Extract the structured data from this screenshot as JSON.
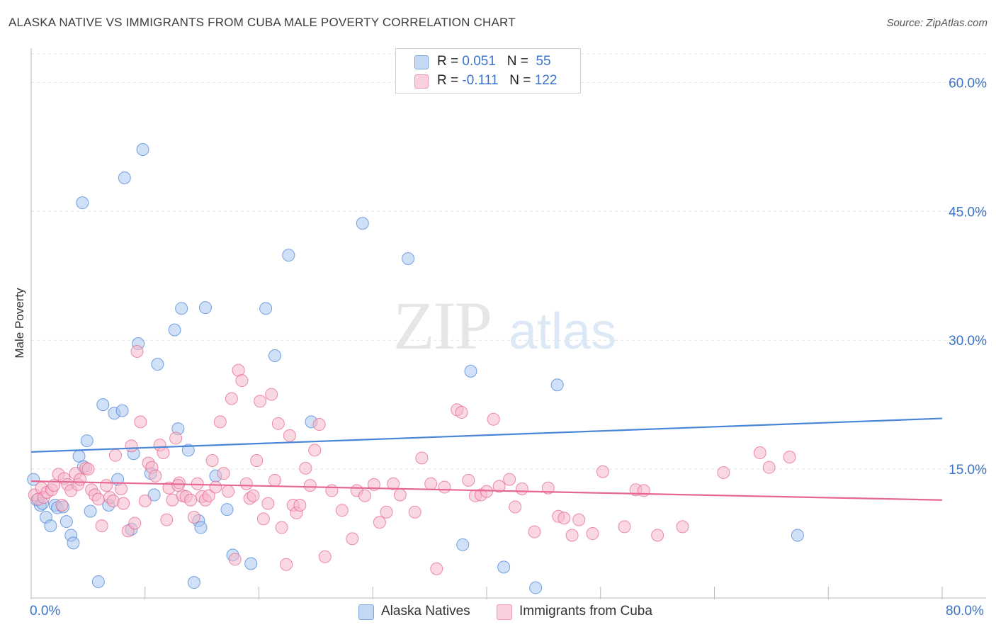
{
  "title": "ALASKA NATIVE VS IMMIGRANTS FROM CUBA MALE POVERTY CORRELATION CHART",
  "source": "Source: ZipAtlas.com",
  "watermark": {
    "zip": "ZIP",
    "atlas": "atlas"
  },
  "legend_top": [
    {
      "r_label": "R =",
      "r_value": "0.051",
      "n_label": "N =",
      "n_value": "55",
      "color": "#a9c6ef"
    },
    {
      "r_label": "R =",
      "r_value": "-0.111",
      "n_label": "N =",
      "n_value": "122",
      "color": "#f6b8cb"
    }
  ],
  "legend_bottom": [
    {
      "label": "Alaska Natives",
      "color": "#a9c6ef"
    },
    {
      "label": "Immigrants from Cuba",
      "color": "#f6b8cb"
    }
  ],
  "x_axis": {
    "min_label": "0.0%",
    "max_label": "80.0%"
  },
  "chart_data": {
    "type": "scatter",
    "title": "ALASKA NATIVE VS IMMIGRANTS FROM CUBA MALE POVERTY CORRELATION CHART",
    "xlabel": "",
    "ylabel": "Male Poverty",
    "xlim": [
      0,
      80
    ],
    "ylim": [
      0,
      63
    ],
    "y_ticks": [
      15,
      30,
      45,
      60
    ],
    "y_tick_labels": [
      "15.0%",
      "30.0%",
      "45.0%",
      "60.0%"
    ],
    "grid": "horizontal dashed",
    "legend_position": "top-center",
    "series": [
      {
        "name": "Alaska Natives",
        "color": "#4a86d8",
        "fill": "#a9c6ef",
        "trend": {
          "x": [
            0,
            80
          ],
          "y": [
            17.0,
            20.9
          ]
        },
        "points": [
          [
            0.2,
            13.8
          ],
          [
            0.5,
            11.4
          ],
          [
            0.8,
            10.8
          ],
          [
            1.3,
            9.4
          ],
          [
            1.7,
            8.4
          ],
          [
            2.1,
            10.8
          ],
          [
            2.3,
            10.5
          ],
          [
            2.8,
            10.6
          ],
          [
            3.1,
            8.9
          ],
          [
            3.5,
            7.3
          ],
          [
            3.7,
            6.4
          ],
          [
            4.2,
            16.5
          ],
          [
            4.6,
            15.3
          ],
          [
            4.9,
            18.3
          ],
          [
            5.2,
            10.1
          ],
          [
            5.9,
            1.9
          ],
          [
            6.3,
            22.5
          ],
          [
            7.3,
            21.5
          ],
          [
            8.0,
            21.8
          ],
          [
            8.2,
            48.9
          ],
          [
            7.6,
            13.8
          ],
          [
            6.8,
            10.8
          ],
          [
            8.8,
            8.0
          ],
          [
            9.0,
            16.8
          ],
          [
            9.4,
            29.6
          ],
          [
            9.8,
            52.2
          ],
          [
            10.5,
            14.5
          ],
          [
            10.8,
            12.0
          ],
          [
            11.1,
            27.2
          ],
          [
            12.6,
            31.2
          ],
          [
            12.9,
            19.7
          ],
          [
            13.2,
            33.7
          ],
          [
            13.8,
            17.2
          ],
          [
            14.3,
            1.8
          ],
          [
            14.7,
            9.0
          ],
          [
            14.9,
            8.2
          ],
          [
            15.3,
            33.8
          ],
          [
            16.2,
            14.2
          ],
          [
            17.2,
            10.3
          ],
          [
            17.7,
            5.0
          ],
          [
            19.3,
            4.0
          ],
          [
            20.6,
            33.7
          ],
          [
            21.4,
            28.2
          ],
          [
            22.6,
            39.9
          ],
          [
            24.6,
            20.5
          ],
          [
            29.1,
            43.6
          ],
          [
            33.1,
            39.5
          ],
          [
            37.9,
            6.2
          ],
          [
            38.6,
            26.4
          ],
          [
            41.5,
            3.6
          ],
          [
            44.3,
            1.2
          ],
          [
            46.2,
            24.8
          ],
          [
            67.3,
            7.3
          ],
          [
            4.5,
            46.0
          ],
          [
            1.0,
            11.0
          ]
        ]
      },
      {
        "name": "Immigrants from Cuba",
        "color": "#e6678f",
        "fill": "#f6b8cb",
        "trend": {
          "x": [
            0,
            80
          ],
          "y": [
            13.6,
            11.4
          ]
        },
        "points": [
          [
            0.3,
            12.0
          ],
          [
            0.6,
            11.5
          ],
          [
            0.9,
            12.8
          ],
          [
            1.1,
            11.7
          ],
          [
            1.4,
            12.3
          ],
          [
            1.8,
            12.6
          ],
          [
            2.0,
            13.1
          ],
          [
            2.4,
            14.4
          ],
          [
            2.7,
            10.8
          ],
          [
            2.9,
            13.9
          ],
          [
            3.2,
            13.2
          ],
          [
            3.5,
            12.5
          ],
          [
            3.9,
            14.5
          ],
          [
            4.1,
            13.2
          ],
          [
            4.3,
            13.8
          ],
          [
            4.8,
            15.1
          ],
          [
            5.0,
            15.0
          ],
          [
            5.3,
            12.6
          ],
          [
            5.6,
            12.0
          ],
          [
            5.9,
            11.5
          ],
          [
            6.2,
            8.4
          ],
          [
            6.6,
            13.1
          ],
          [
            6.9,
            11.7
          ],
          [
            7.2,
            11.3
          ],
          [
            7.4,
            16.6
          ],
          [
            7.9,
            12.7
          ],
          [
            8.1,
            11.0
          ],
          [
            8.5,
            7.8
          ],
          [
            8.8,
            17.7
          ],
          [
            9.1,
            8.7
          ],
          [
            9.3,
            28.7
          ],
          [
            9.6,
            20.5
          ],
          [
            10.0,
            11.3
          ],
          [
            10.3,
            15.7
          ],
          [
            10.6,
            15.2
          ],
          [
            10.9,
            14.2
          ],
          [
            11.3,
            17.8
          ],
          [
            11.6,
            16.9
          ],
          [
            11.9,
            9.1
          ],
          [
            12.1,
            12.8
          ],
          [
            12.4,
            11.4
          ],
          [
            12.7,
            18.6
          ],
          [
            13.0,
            13.4
          ],
          [
            13.3,
            11.9
          ],
          [
            13.6,
            11.8
          ],
          [
            14.0,
            11.4
          ],
          [
            14.3,
            9.4
          ],
          [
            14.6,
            13.3
          ],
          [
            15.0,
            11.8
          ],
          [
            15.3,
            11.4
          ],
          [
            15.6,
            11.9
          ],
          [
            15.9,
            16.0
          ],
          [
            16.2,
            12.9
          ],
          [
            16.6,
            20.5
          ],
          [
            16.9,
            14.5
          ],
          [
            17.3,
            12.4
          ],
          [
            17.6,
            23.2
          ],
          [
            17.9,
            4.5
          ],
          [
            18.2,
            26.5
          ],
          [
            18.5,
            25.3
          ],
          [
            18.9,
            13.3
          ],
          [
            19.2,
            11.6
          ],
          [
            19.5,
            11.9
          ],
          [
            19.8,
            16.0
          ],
          [
            20.1,
            22.9
          ],
          [
            20.4,
            9.2
          ],
          [
            20.8,
            11.0
          ],
          [
            21.1,
            23.7
          ],
          [
            21.4,
            13.7
          ],
          [
            21.7,
            20.3
          ],
          [
            22.0,
            8.2
          ],
          [
            22.4,
            3.9
          ],
          [
            22.7,
            18.9
          ],
          [
            23.0,
            10.8
          ],
          [
            23.3,
            9.9
          ],
          [
            23.6,
            10.8
          ],
          [
            24.1,
            15.1
          ],
          [
            24.5,
            13.1
          ],
          [
            24.9,
            17.2
          ],
          [
            25.3,
            20.2
          ],
          [
            25.8,
            4.8
          ],
          [
            26.4,
            12.5
          ],
          [
            27.3,
            10.2
          ],
          [
            28.2,
            6.9
          ],
          [
            28.6,
            12.5
          ],
          [
            29.3,
            11.9
          ],
          [
            30.1,
            13.2
          ],
          [
            30.6,
            8.8
          ],
          [
            31.2,
            10.0
          ],
          [
            31.8,
            13.3
          ],
          [
            32.4,
            12.0
          ],
          [
            33.7,
            10.0
          ],
          [
            34.3,
            16.3
          ],
          [
            35.1,
            13.3
          ],
          [
            35.6,
            3.4
          ],
          [
            36.3,
            12.9
          ],
          [
            37.4,
            21.9
          ],
          [
            37.8,
            21.6
          ],
          [
            38.4,
            13.7
          ],
          [
            39.0,
            11.9
          ],
          [
            39.5,
            12.0
          ],
          [
            40.0,
            12.4
          ],
          [
            40.6,
            20.8
          ],
          [
            41.1,
            13.0
          ],
          [
            42.0,
            13.8
          ],
          [
            42.5,
            10.6
          ],
          [
            43.1,
            12.7
          ],
          [
            44.2,
            7.7
          ],
          [
            45.4,
            12.8
          ],
          [
            46.3,
            9.5
          ],
          [
            46.8,
            9.3
          ],
          [
            47.5,
            7.3
          ],
          [
            48.1,
            9.1
          ],
          [
            49.3,
            7.5
          ],
          [
            50.2,
            14.7
          ],
          [
            52.1,
            8.3
          ],
          [
            53.1,
            12.6
          ],
          [
            53.8,
            12.5
          ],
          [
            55.0,
            7.3
          ],
          [
            57.2,
            8.3
          ],
          [
            60.8,
            14.6
          ],
          [
            64.0,
            16.9
          ],
          [
            64.8,
            15.2
          ],
          [
            66.6,
            16.4
          ],
          [
            12.9,
            13.1
          ]
        ]
      }
    ]
  }
}
